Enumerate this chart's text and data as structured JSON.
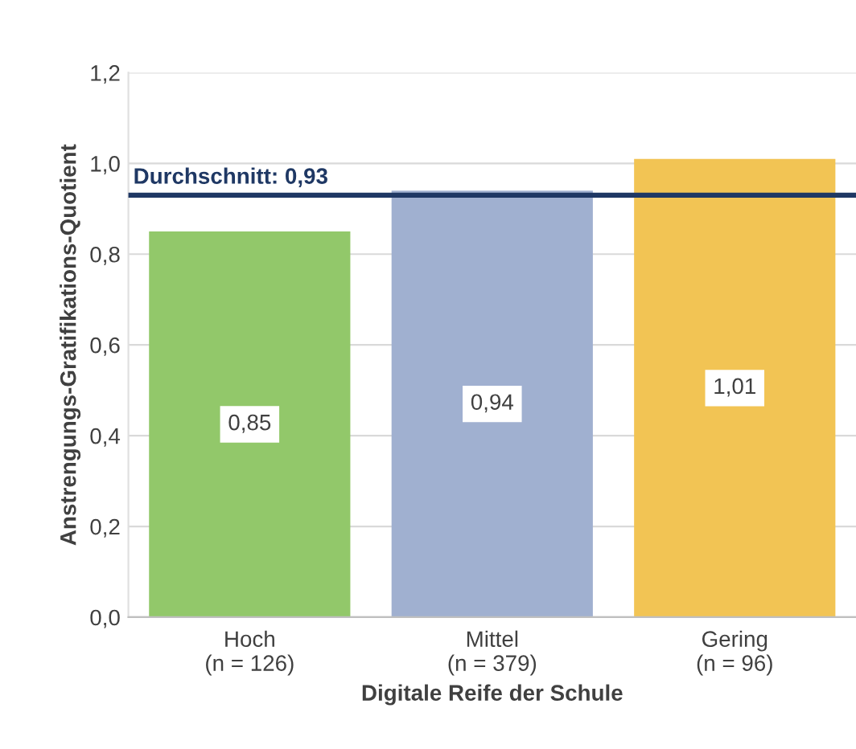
{
  "chart_data": {
    "type": "bar",
    "xlabel": "Digitale Reife der Schule",
    "ylabel": "Anstrengungs-Gratifikations-Quotient",
    "categories": [
      "Hoch\n(n = 126)",
      "Mittel\n(n = 379)",
      "Gering\n(n = 96)"
    ],
    "values": [
      0.85,
      0.94,
      1.01
    ],
    "colors": [
      "#92c86a",
      "#a0b0d0",
      "#f2c454"
    ],
    "value_labels": [
      "0,85",
      "0,94",
      "1,01"
    ],
    "ylim": [
      0,
      1.2
    ],
    "yticks": [
      {
        "value": 0,
        "label": "0,0"
      },
      {
        "value": 0.2,
        "label": "0,2"
      },
      {
        "value": 0.4,
        "label": "0,4"
      },
      {
        "value": 0.6,
        "label": "0,6"
      },
      {
        "value": 0.8,
        "label": "0,8"
      },
      {
        "value": 1.0,
        "label": "1,0"
      },
      {
        "value": 1.2,
        "label": "1,2"
      }
    ],
    "grid": "y",
    "legend": false,
    "ref_lines": [
      {
        "axis": "y",
        "value": 0.93,
        "label": "Durchschnitt: 0,93",
        "color": "#1f3864",
        "line_style": "solid"
      }
    ]
  }
}
